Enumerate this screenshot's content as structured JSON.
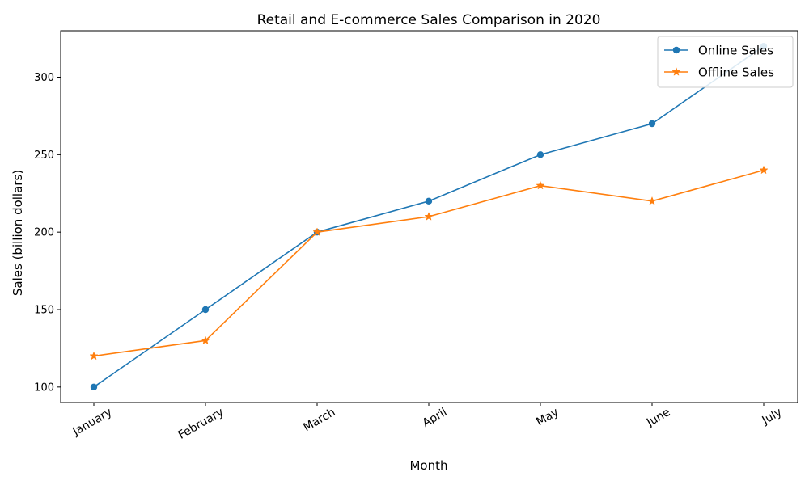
{
  "chart_data": {
    "type": "line",
    "title": "Retail and E-commerce Sales Comparison in 2020",
    "xlabel": "Month",
    "ylabel": "Sales (billion dollars)",
    "categories": [
      "January",
      "February",
      "March",
      "April",
      "May",
      "June",
      "July"
    ],
    "ylim": [
      90,
      330
    ],
    "yticks": [
      100,
      150,
      200,
      250,
      300
    ],
    "grid": false,
    "legend_position": "top-right",
    "series": [
      {
        "name": "Online Sales",
        "color": "#1f77b4",
        "marker": "circle",
        "values": [
          100,
          150,
          200,
          220,
          250,
          270,
          320
        ]
      },
      {
        "name": "Offline Sales",
        "color": "#ff7f0e",
        "marker": "star",
        "values": [
          120,
          130,
          200,
          210,
          230,
          220,
          240
        ]
      }
    ]
  }
}
